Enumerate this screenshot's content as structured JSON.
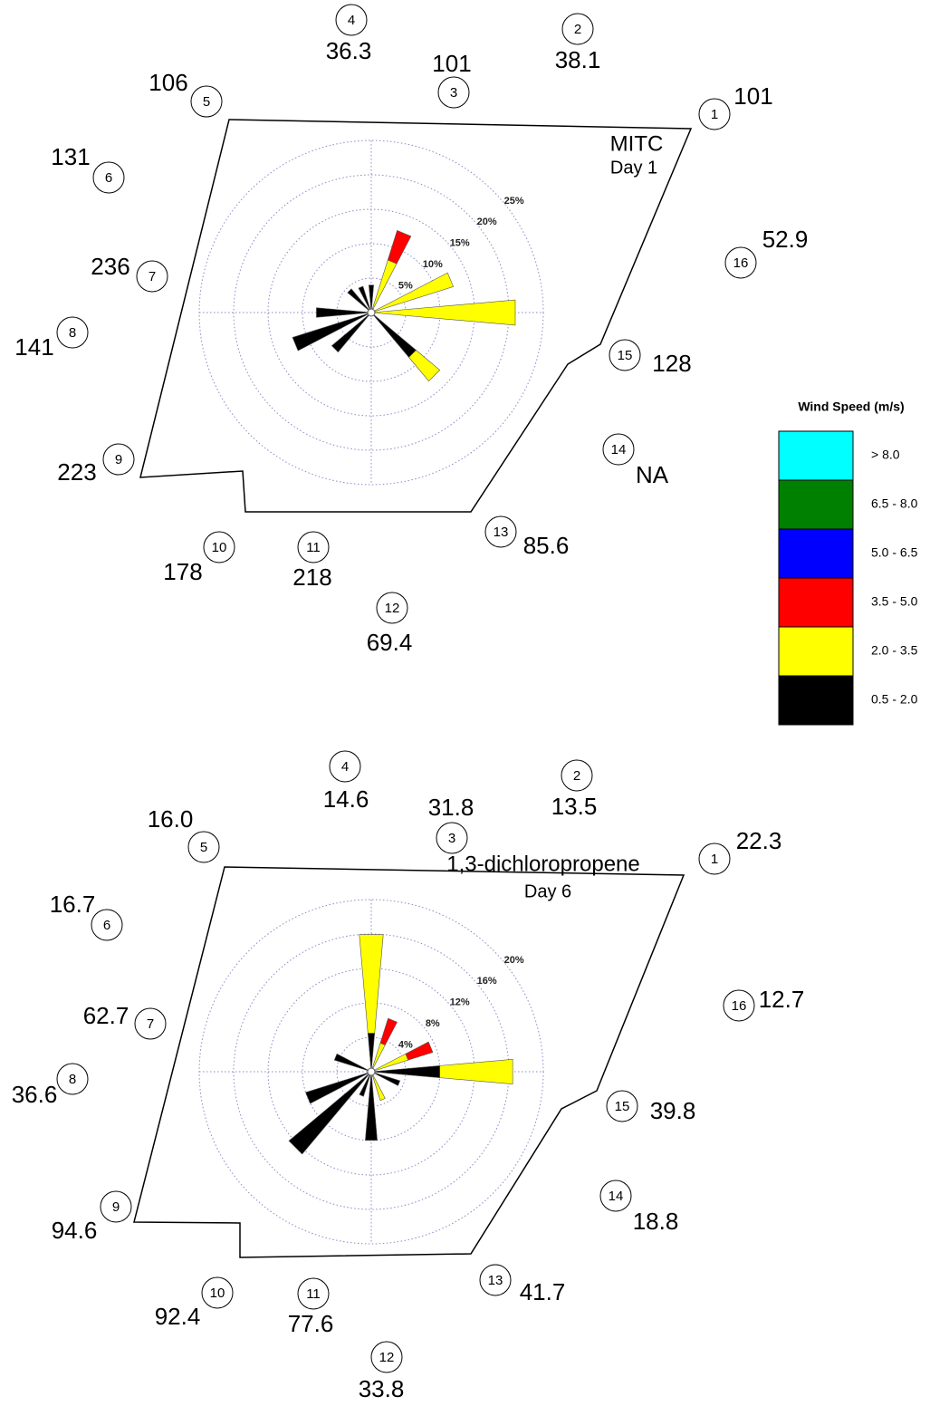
{
  "legend": {
    "title": "Wind Speed (m/s)",
    "items": [
      {
        "color": "#00ffff",
        "label": "> 8.0"
      },
      {
        "color": "#008000",
        "label": "6.5 - 8.0"
      },
      {
        "color": "#0000ff",
        "label": "5.0 - 6.5"
      },
      {
        "color": "#ff0000",
        "label": "3.5 - 5.0"
      },
      {
        "color": "#ffff00",
        "label": "2.0 - 3.5"
      },
      {
        "color": "#000000",
        "label": "0.5 - 2.0"
      }
    ]
  },
  "panels": [
    {
      "title": [
        "MITC",
        "Day 1"
      ],
      "rlim": [
        0,
        25
      ],
      "rings": [
        {
          "value": 5,
          "label": "5%"
        },
        {
          "value": 10,
          "label": "10%"
        },
        {
          "value": 15,
          "label": "15%"
        },
        {
          "value": 20,
          "label": "20%"
        },
        {
          "value": 25,
          "label": "25%"
        }
      ],
      "petals": [
        {
          "direction": 0,
          "segments": [
            {
              "color": "#000000",
              "value": 4
            }
          ]
        },
        {
          "direction": 22.5,
          "segments": [
            {
              "color": "#ffff00",
              "value": 8
            },
            {
              "color": "#ff0000",
              "value": 4.5
            }
          ]
        },
        {
          "direction": 67.5,
          "segments": [
            {
              "color": "#ffff00",
              "value": 12.5
            }
          ]
        },
        {
          "direction": 90,
          "segments": [
            {
              "color": "#ffff00",
              "value": 21
            }
          ]
        },
        {
          "direction": 135,
          "segments": [
            {
              "color": "#000000",
              "value": 8.5
            },
            {
              "color": "#ffff00",
              "value": 4.5
            }
          ]
        },
        {
          "direction": 225,
          "segments": [
            {
              "color": "#000000",
              "value": 7.5
            }
          ]
        },
        {
          "direction": 247.5,
          "segments": [
            {
              "color": "#000000",
              "value": 12
            }
          ]
        },
        {
          "direction": 270,
          "segments": [
            {
              "color": "#000000",
              "value": 8
            }
          ]
        },
        {
          "direction": 315,
          "segments": [
            {
              "color": "#000000",
              "value": 4.5
            }
          ]
        },
        {
          "direction": 337.5,
          "segments": [
            {
              "color": "#000000",
              "value": 4
            }
          ]
        }
      ],
      "stations": [
        {
          "id": 1,
          "value": 101
        },
        {
          "id": 2,
          "value": 38.1
        },
        {
          "id": 3,
          "value": 101
        },
        {
          "id": 4,
          "value": 36.3
        },
        {
          "id": 5,
          "value": 106
        },
        {
          "id": 6,
          "value": 131
        },
        {
          "id": 7,
          "value": 236
        },
        {
          "id": 8,
          "value": 141
        },
        {
          "id": 9,
          "value": 223
        },
        {
          "id": 10,
          "value": 178
        },
        {
          "id": 11,
          "value": 218
        },
        {
          "id": 12,
          "value": 69.4
        },
        {
          "id": 13,
          "value": 85.6
        },
        {
          "id": 14,
          "value": "NA"
        },
        {
          "id": 15,
          "value": 128
        },
        {
          "id": 16,
          "value": 52.9
        }
      ]
    },
    {
      "title": [
        "1,3-dichloropropene",
        "Day 6"
      ],
      "rlim": [
        0,
        20
      ],
      "rings": [
        {
          "value": 4,
          "label": "4%"
        },
        {
          "value": 8,
          "label": "8%"
        },
        {
          "value": 12,
          "label": "12%"
        },
        {
          "value": 16,
          "label": "16%"
        },
        {
          "value": 20,
          "label": "20%"
        }
      ],
      "petals": [
        {
          "direction": 0,
          "segments": [
            {
              "color": "#000000",
              "value": 4.5
            },
            {
              "color": "#ffff00",
              "value": 11.5
            }
          ]
        },
        {
          "direction": 22.5,
          "segments": [
            {
              "color": "#ffff00",
              "value": 3.5
            },
            {
              "color": "#ff0000",
              "value": 3
            }
          ]
        },
        {
          "direction": 67.5,
          "segments": [
            {
              "color": "#ffff00",
              "value": 4.5
            },
            {
              "color": "#ff0000",
              "value": 3
            }
          ]
        },
        {
          "direction": 90,
          "segments": [
            {
              "color": "#000000",
              "value": 8
            },
            {
              "color": "#ffff00",
              "value": 8.5
            }
          ]
        },
        {
          "direction": 112.5,
          "segments": [
            {
              "color": "#000000",
              "value": 3.5
            }
          ]
        },
        {
          "direction": 157.5,
          "segments": [
            {
              "color": "#ffff00",
              "value": 3.5
            }
          ]
        },
        {
          "direction": 180,
          "segments": [
            {
              "color": "#000000",
              "value": 8
            }
          ]
        },
        {
          "direction": 202.5,
          "segments": [
            {
              "color": "#000000",
              "value": 3
            }
          ]
        },
        {
          "direction": 225,
          "segments": [
            {
              "color": "#000000",
              "value": 12.5
            }
          ]
        },
        {
          "direction": 247.5,
          "segments": [
            {
              "color": "#000000",
              "value": 8
            }
          ]
        },
        {
          "direction": 292.5,
          "segments": [
            {
              "color": "#000000",
              "value": 4.5
            }
          ]
        }
      ],
      "stations": [
        {
          "id": 1,
          "value": 22.3
        },
        {
          "id": 2,
          "value": 13.5
        },
        {
          "id": 3,
          "value": 31.8
        },
        {
          "id": 4,
          "value": 14.6
        },
        {
          "id": 5,
          "value": {
            "value": 16,
            "label": "16.0"
          }
        },
        {
          "id": 6,
          "value": 16.7
        },
        {
          "id": 7,
          "value": 62.7
        },
        {
          "id": 8,
          "value": 36.6
        },
        {
          "id": 9,
          "value": 94.6
        },
        {
          "id": 10,
          "value": 92.4
        },
        {
          "id": 11,
          "value": 77.6
        },
        {
          "id": 12,
          "value": 33.8
        },
        {
          "id": 13,
          "value": 41.7
        },
        {
          "id": 14,
          "value": 18.8
        },
        {
          "id": 15,
          "value": 39.8
        },
        {
          "id": 16,
          "value": 12.7
        }
      ]
    }
  ]
}
